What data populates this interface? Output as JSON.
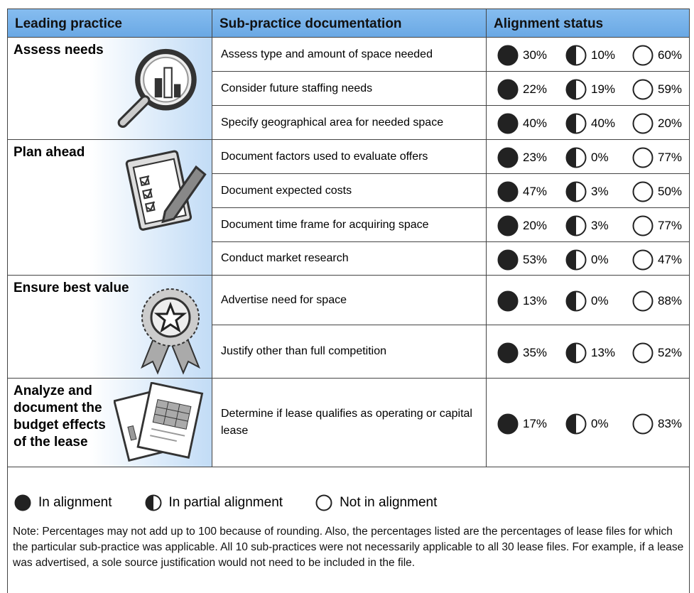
{
  "header": [
    "Leading practice",
    "Sub-practice documentation",
    "Alignment status"
  ],
  "groups": [
    {
      "practice": "Assess needs",
      "rows": [
        {
          "sub": "Assess type and amount of space needed",
          "status": [
            "30%",
            "10%",
            "60%"
          ]
        },
        {
          "sub": "Consider future staffing needs",
          "status": [
            "22%",
            "19%",
            "59%"
          ]
        },
        {
          "sub": "Specify geographical area for needed space",
          "status": [
            "40%",
            "40%",
            "20%"
          ]
        }
      ]
    },
    {
      "practice": "Plan ahead",
      "rows": [
        {
          "sub": "Document factors used to evaluate offers",
          "status": [
            "23%",
            "0%",
            "77%"
          ]
        },
        {
          "sub": "Document expected costs",
          "status": [
            "47%",
            "3%",
            "50%"
          ]
        },
        {
          "sub": "Document time frame for acquiring space",
          "status": [
            "20%",
            "3%",
            "77%"
          ]
        },
        {
          "sub": "Conduct market research",
          "status": [
            "53%",
            "0%",
            "47%"
          ]
        }
      ]
    },
    {
      "practice": "Ensure best value",
      "rows": [
        {
          "sub": "Advertise need for space",
          "status": [
            "13%",
            "0%",
            "88%"
          ]
        },
        {
          "sub": "Justify other than full competition",
          "status": [
            "35%",
            "13%",
            "52%"
          ]
        }
      ]
    },
    {
      "practice": "Analyze and document the budget effects of the lease",
      "rows": [
        {
          "sub": "Determine if lease qualifies as operating or capital lease",
          "status": [
            "17%",
            "0%",
            "83%"
          ]
        }
      ]
    }
  ],
  "legend": [
    "In alignment",
    "In partial alignment",
    "Not in alignment"
  ],
  "note": "Note: Percentages may not add up to 100 because of rounding. Also, the percentages listed are the percentages of lease files for which the particular sub-practice was applicable. All 10 sub-practices were not necessarily applicable to all 30 lease files. For example, if a lease was advertised, a sole source justification would not need to be included in the file."
}
